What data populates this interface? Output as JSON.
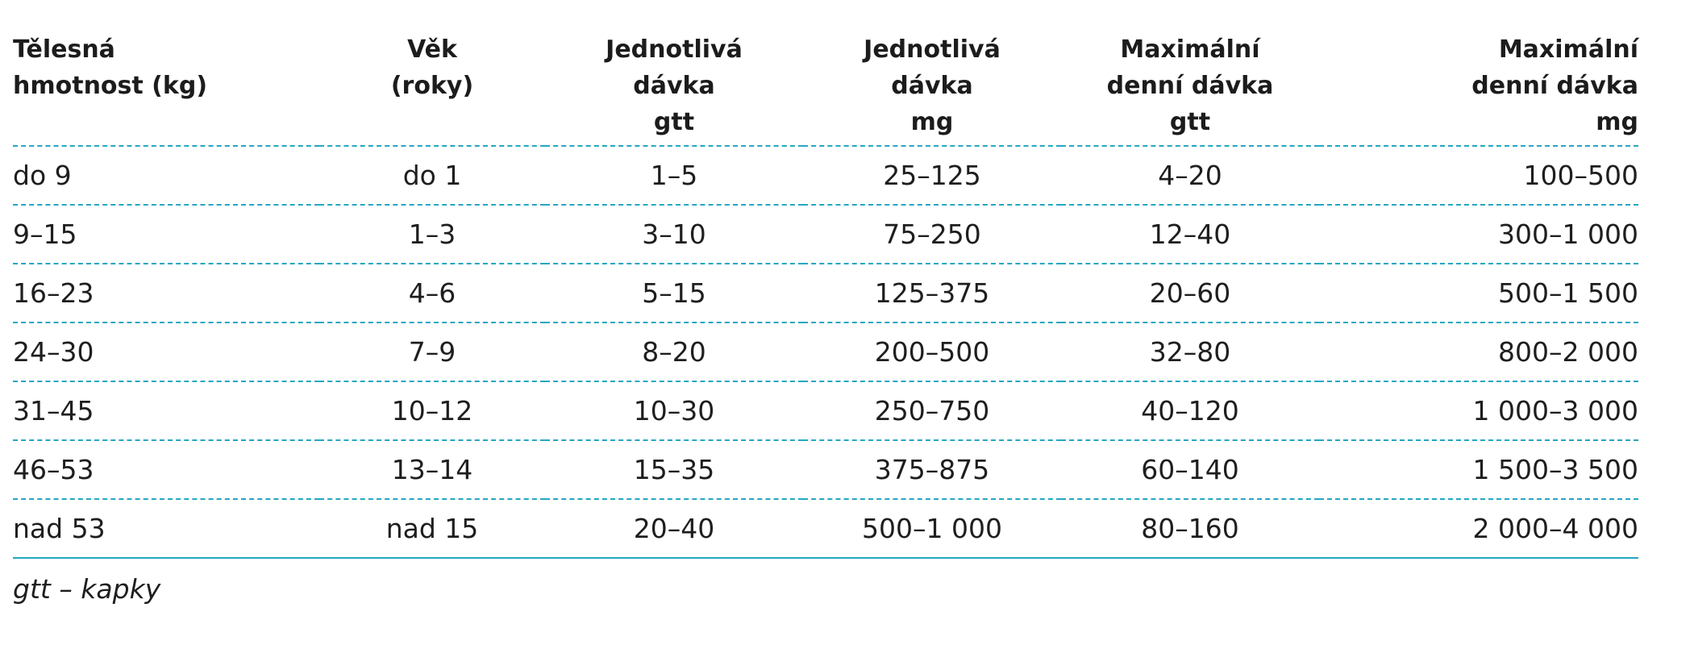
{
  "table": {
    "headers": [
      [
        "Tělesná",
        "hmotnost (kg)"
      ],
      [
        "Věk",
        "(roky)"
      ],
      [
        "Jednotlivá",
        "dávka",
        "gtt"
      ],
      [
        "Jednotlivá",
        "dávka",
        "mg"
      ],
      [
        "Maximální",
        "denní dávka",
        "gtt"
      ],
      [
        "Maximální",
        "denní dávka",
        "mg"
      ]
    ],
    "rows": [
      [
        "do 9",
        "do 1",
        "1–5",
        "25–125",
        "4–20",
        "100–500"
      ],
      [
        "9–15",
        "1–3",
        "3–10",
        "75–250",
        "12–40",
        "300–1 000"
      ],
      [
        "16–23",
        "4–6",
        "5–15",
        "125–375",
        "20–60",
        "500–1 500"
      ],
      [
        "24–30",
        "7–9",
        "8–20",
        "200–500",
        "32–80",
        "800–2 000"
      ],
      [
        "31–45",
        "10–12",
        "10–30",
        "250–750",
        "40–120",
        "1 000–3 000"
      ],
      [
        "46–53",
        "13–14",
        "15–35",
        "375–875",
        "60–140",
        "1 500–3 500"
      ],
      [
        "nad 53",
        "nad 15",
        "20–40",
        "500–1 000",
        "80–160",
        "2 000–4 000"
      ]
    ],
    "accent_color": "#25a7c2"
  },
  "footnote": "gtt – kapky"
}
